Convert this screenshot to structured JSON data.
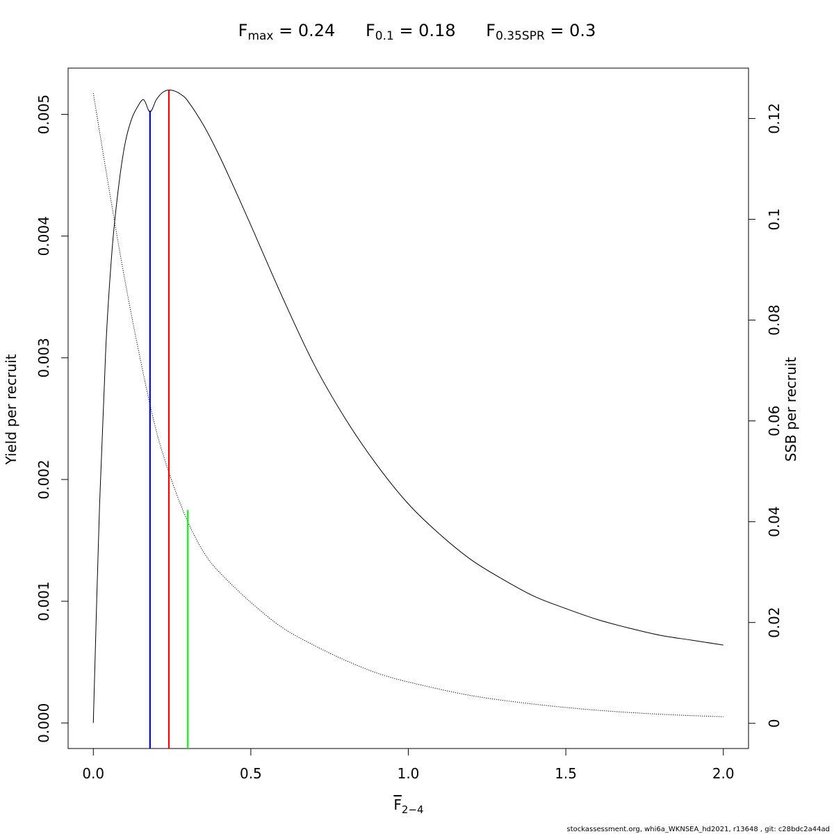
{
  "title": {
    "fmax": {
      "main": "F",
      "sub": "max",
      "rest": " = 0.24"
    },
    "f01": {
      "main": "F",
      "sub": "0.1",
      "rest": " = 0.18"
    },
    "fspr": {
      "main": "F",
      "sub": "0.35SPR",
      "rest": " = 0.3"
    }
  },
  "footer": "stockassessment.org, whi6a_WKNSEA_hd2021, r13648 , git: c28bdc2a44ad",
  "chart_data": {
    "type": "line",
    "xlabel": {
      "main": "F",
      "sub": "2−4"
    },
    "ylabel_left": "Yield per recruit",
    "ylabel_right": "SSB per recruit",
    "xlim": [
      -0.08,
      2.08
    ],
    "ylim_left": [
      -0.00021,
      0.00538
    ],
    "ylim_right": [
      -0.005,
      0.13
    ],
    "x_ticks": [
      0.0,
      0.5,
      1.0,
      1.5,
      2.0
    ],
    "x_tick_labels": [
      "0.0",
      "0.5",
      "1.0",
      "1.5",
      "2.0"
    ],
    "y_left_ticks": [
      0.0,
      0.001,
      0.002,
      0.003,
      0.004,
      0.005
    ],
    "y_left_tick_labels": [
      "0.000",
      "0.001",
      "0.002",
      "0.003",
      "0.004",
      "0.005"
    ],
    "y_right_ticks": [
      0,
      0.02,
      0.04,
      0.06,
      0.08,
      0.1,
      0.12
    ],
    "y_right_tick_labels": [
      "0",
      "0.02",
      "0.04",
      "0.06",
      "0.08",
      "0.1",
      "0.12"
    ],
    "grid": false,
    "series": [
      {
        "axis": "left",
        "style": "solid",
        "color": "#000000",
        "x": [
          0.0,
          0.02,
          0.04,
          0.06,
          0.08,
          0.1,
          0.12,
          0.14,
          0.16,
          0.18,
          0.2,
          0.22,
          0.24,
          0.26,
          0.28,
          0.3,
          0.35,
          0.4,
          0.45,
          0.5,
          0.6,
          0.7,
          0.8,
          0.9,
          1.0,
          1.1,
          1.2,
          1.3,
          1.4,
          1.5,
          1.6,
          1.7,
          1.8,
          1.9,
          2.0
        ],
        "y": [
          0.0,
          0.0018,
          0.0031,
          0.0039,
          0.0044,
          0.00475,
          0.00495,
          0.00506,
          0.00512,
          0.00502,
          0.00512,
          0.00518,
          0.0052,
          0.00519,
          0.00516,
          0.00511,
          0.00491,
          0.00466,
          0.00438,
          0.00409,
          0.0035,
          0.00295,
          0.0025,
          0.00212,
          0.0018,
          0.00155,
          0.00134,
          0.00118,
          0.00104,
          0.00094,
          0.00085,
          0.00078,
          0.00072,
          0.00068,
          0.00064
        ]
      },
      {
        "axis": "right",
        "style": "dotted",
        "color": "#000000",
        "x": [
          0.0,
          0.05,
          0.1,
          0.15,
          0.2,
          0.25,
          0.3,
          0.35,
          0.4,
          0.5,
          0.6,
          0.7,
          0.8,
          0.9,
          1.0,
          1.2,
          1.4,
          1.6,
          1.8,
          2.0
        ],
        "y": [
          0.125,
          0.106,
          0.088,
          0.072,
          0.058,
          0.048,
          0.04,
          0.034,
          0.03,
          0.024,
          0.019,
          0.0155,
          0.0125,
          0.01,
          0.0082,
          0.0055,
          0.0038,
          0.0026,
          0.0018,
          0.0013
        ]
      }
    ],
    "reference_lines": [
      {
        "name": "F0.1",
        "x": 0.18,
        "y_top_left_axis": 0.00503,
        "color": "#0000ff"
      },
      {
        "name": "Fmax",
        "x": 0.24,
        "y_top_left_axis": 0.0052,
        "color": "#ff0000"
      },
      {
        "name": "F0.35SPR",
        "x": 0.3,
        "y_top_left_axis": 0.00175,
        "color": "#00ff00"
      }
    ]
  }
}
